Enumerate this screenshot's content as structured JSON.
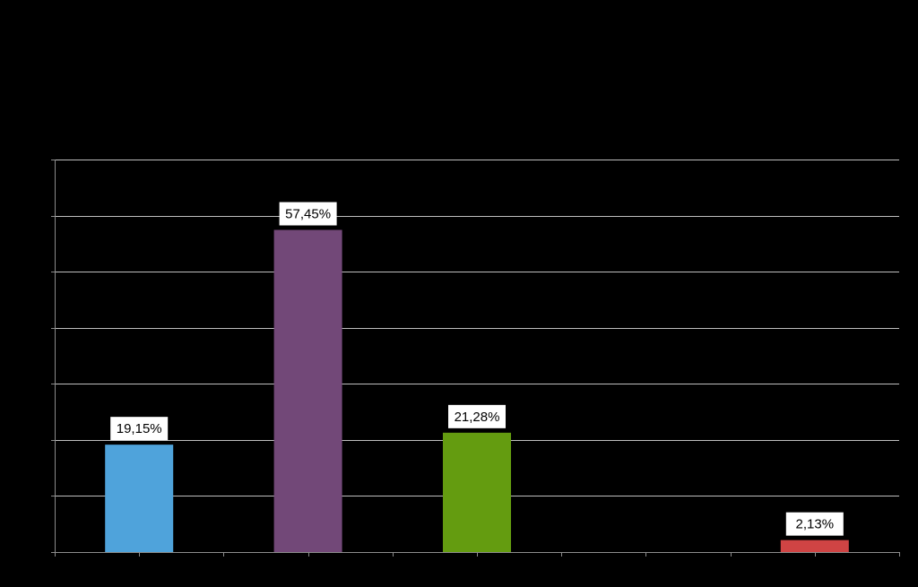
{
  "chart_data": {
    "type": "bar",
    "categories": [
      "",
      "",
      "",
      "",
      ""
    ],
    "values": [
      19.15,
      57.45,
      21.28,
      0,
      2.13
    ],
    "data_labels": [
      "19,15%",
      "57,45%",
      "21,28%",
      "",
      "2,13%"
    ],
    "colors": [
      "#4fa3db",
      "#724878",
      "#649c10",
      "#000000",
      "#d04444"
    ],
    "ylim": [
      0,
      70
    ],
    "y_grid_step": 10,
    "grid": true,
    "title": "",
    "xlabel": "",
    "ylabel": "",
    "background": "#000000",
    "gridline_color": "#bfbfbf",
    "axis_color": "#8c8c8c"
  }
}
